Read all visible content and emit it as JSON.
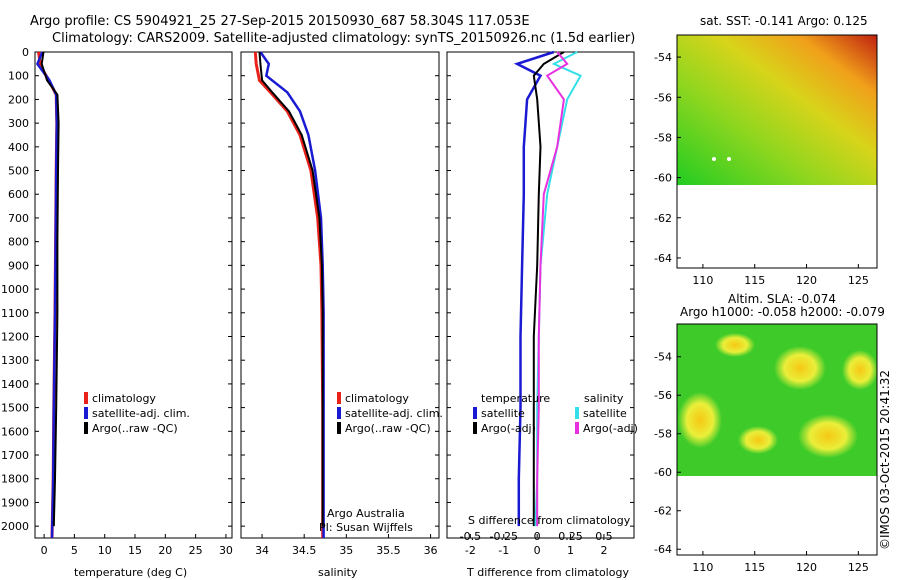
{
  "header": {
    "line1": "Argo profile: CS 5904921_25 27-Sep-2015 20150930_687 58.304S 117.053E",
    "line2": "Climatology: CARS2009. Satellite-adjusted climatology: synTS_20150926.nc (1.5d earlier)"
  },
  "colors": {
    "climatology": "#e8211a",
    "satellite": "#1a1ad2",
    "argo": "#000000",
    "cyan": "#33e0ea",
    "magenta": "#e830e0"
  },
  "depth_ticks": [
    "0",
    "100",
    "200",
    "300",
    "400",
    "500",
    "600",
    "700",
    "800",
    "900",
    "1000",
    "1100",
    "1200",
    "1300",
    "1400",
    "1500",
    "1600",
    "1700",
    "1800",
    "1900",
    "2000"
  ],
  "panel_temp": {
    "xlabel": "temperature (deg C)",
    "x_ticks": [
      "0",
      "5",
      "10",
      "15",
      "20",
      "25",
      "30"
    ],
    "legend": [
      "climatology",
      "satellite-adj. clim.",
      "Argo(..raw -QC)"
    ]
  },
  "panel_sal": {
    "xlabel": "salinity",
    "x_ticks": [
      "34",
      "34.5",
      "35",
      "35.5",
      "36"
    ],
    "legend": [
      "climatology",
      "satellite-adj. clim.",
      "Argo(..raw -QC)"
    ],
    "note1": "Argo Australia",
    "note2": "PI: Susan Wijffels"
  },
  "panel_diff": {
    "xlabel": "T difference from climatology",
    "top_label": "S difference from climatology",
    "x_ticks": [
      "-2",
      "-1",
      "0",
      "1",
      "2"
    ],
    "top_ticks": [
      "-0.5",
      "-0.25",
      "0",
      "0.25",
      "0.5"
    ],
    "legend_t_title": "temperature",
    "legend_s_title": "salinity",
    "legend_t": [
      "satellite",
      "Argo(-adj)"
    ],
    "legend_s": [
      "satellite",
      "Argo(-adj)"
    ]
  },
  "map_sst": {
    "title": "sat. SST: -0.141 Argo: 0.125",
    "y_ticks": [
      "-54",
      "-56",
      "-58",
      "-60",
      "-62",
      "-64"
    ],
    "x_ticks": [
      "110",
      "115",
      "120",
      "125"
    ]
  },
  "map_sla": {
    "title1": "Altim. SLA: -0.074",
    "title2": "Argo h1000: -0.058 h2000: -0.079",
    "y_ticks": [
      "-54",
      "-56",
      "-58",
      "-60",
      "-62",
      "-64"
    ],
    "x_ticks": [
      "110",
      "115",
      "120",
      "125"
    ]
  },
  "credit": "©IMOS 03-Oct-2015 20:41:32",
  "chart_data": [
    {
      "type": "line",
      "xlabel": "temperature (deg C)",
      "ylim": [
        2050,
        0
      ],
      "xlim": [
        -1.5,
        31
      ],
      "series": [
        {
          "name": "climatology",
          "x": [
            -0.9,
            -0.6,
            0.8,
            2.0,
            2.1,
            2.0,
            1.9,
            1.8,
            1.6,
            1.5,
            1.3
          ],
          "y": [
            0,
            60,
            120,
            180,
            300,
            500,
            800,
            1100,
            1500,
            1800,
            2050
          ]
        },
        {
          "name": "satellite-adj. clim.",
          "x": [
            -0.3,
            -1.1,
            0.9,
            2.0,
            2.1,
            2.0,
            1.9,
            1.8,
            1.6,
            1.5,
            1.3
          ],
          "y": [
            0,
            50,
            120,
            180,
            300,
            500,
            800,
            1100,
            1500,
            1800,
            2050
          ]
        },
        {
          "name": "Argo(..raw -QC)",
          "x": [
            -0.1,
            -0.4,
            0.5,
            2.2,
            2.4,
            2.3,
            2.2,
            2.2,
            2.0,
            1.8,
            1.6
          ],
          "y": [
            0,
            50,
            120,
            180,
            300,
            500,
            800,
            1100,
            1500,
            1800,
            2000
          ]
        }
      ]
    },
    {
      "type": "line",
      "xlabel": "salinity",
      "ylim": [
        2050,
        0
      ],
      "xlim": [
        33.75,
        36.1
      ],
      "series": [
        {
          "name": "climatology",
          "x": [
            33.92,
            33.93,
            33.97,
            34.1,
            34.3,
            34.45,
            34.58,
            34.66,
            34.7,
            34.71,
            34.72,
            34.72
          ],
          "y": [
            0,
            50,
            120,
            170,
            250,
            350,
            500,
            700,
            900,
            1100,
            1500,
            2050
          ]
        },
        {
          "name": "satellite-adj. clim.",
          "x": [
            33.98,
            34.08,
            34.05,
            34.3,
            34.45,
            34.55,
            34.63,
            34.7,
            34.72,
            34.73,
            34.73,
            34.73
          ],
          "y": [
            0,
            50,
            100,
            170,
            250,
            350,
            500,
            700,
            900,
            1100,
            1500,
            2050
          ]
        },
        {
          "name": "Argo(..raw -QC)",
          "x": [
            33.97,
            33.98,
            34.0,
            34.12,
            34.32,
            34.47,
            34.6,
            34.68,
            34.71,
            34.72,
            34.72,
            34.72
          ],
          "y": [
            0,
            50,
            120,
            170,
            250,
            350,
            500,
            700,
            900,
            1100,
            1500,
            2000
          ]
        }
      ]
    },
    {
      "type": "line",
      "xlabel": "T difference from climatology",
      "ylim": [
        2050,
        0
      ],
      "xlim": [
        -2.7,
        2.9
      ],
      "series": [
        {
          "name": "temperature satellite",
          "x": [
            0.5,
            -0.6,
            0.1,
            -0.3,
            -0.4,
            -0.4,
            -0.45,
            -0.5,
            -0.5,
            -0.55,
            -0.55
          ],
          "y": [
            0,
            50,
            100,
            200,
            400,
            600,
            900,
            1200,
            1500,
            1800,
            2000
          ]
        },
        {
          "name": "temperature Argo(-adj)",
          "x": [
            0.8,
            0.2,
            -0.1,
            0.0,
            0.1,
            0.05,
            0.0,
            -0.1,
            -0.1,
            -0.1,
            -0.1
          ],
          "y": [
            0,
            50,
            100,
            200,
            400,
            600,
            900,
            1200,
            1500,
            1800,
            2000
          ]
        },
        {
          "name": "salinity satellite",
          "x": [
            1.2,
            0.5,
            1.3,
            0.9,
            0.6,
            0.3,
            0.1,
            0.05,
            0.0,
            0.0,
            -0.05
          ],
          "y": [
            0,
            50,
            100,
            200,
            400,
            600,
            900,
            1200,
            1500,
            1800,
            2000
          ]
        },
        {
          "name": "salinity Argo(-adj)",
          "x": [
            0.6,
            0.9,
            0.3,
            0.8,
            0.6,
            0.2,
            0.1,
            0.05,
            0.05,
            0.0,
            0.0
          ],
          "y": [
            0,
            50,
            100,
            200,
            400,
            600,
            900,
            1200,
            1500,
            1800,
            2000
          ]
        }
      ]
    }
  ]
}
